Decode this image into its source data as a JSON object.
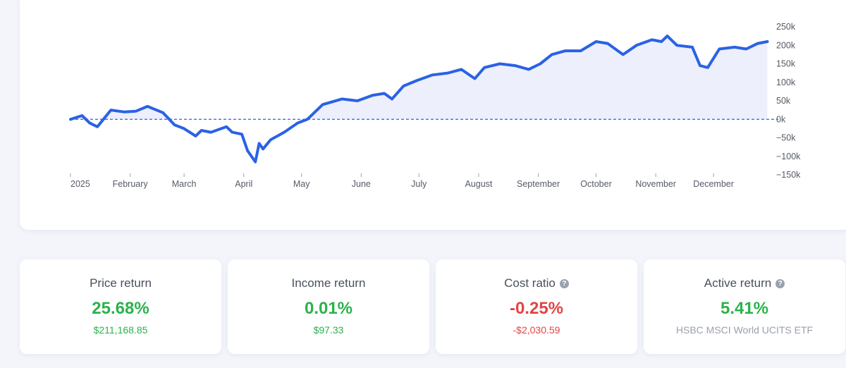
{
  "chart_data": {
    "type": "area",
    "x_ticks": [
      "2025",
      "February",
      "March",
      "April",
      "May",
      "June",
      "July",
      "August",
      "September",
      "October",
      "November",
      "December"
    ],
    "y_ticks": [
      "250k",
      "200k",
      "150k",
      "100k",
      "50k",
      "0k",
      "−50k",
      "−100k",
      "−150k"
    ],
    "ylim": [
      -150000,
      250000
    ],
    "grid": false,
    "baseline": 0,
    "colors": {
      "line": "#2a62e6",
      "fill": "#edf0fc",
      "baseline": "#2a62e6"
    },
    "series": [
      {
        "x": [
          "2025-01-01",
          "2025-01-07",
          "2025-01-11",
          "2025-01-15",
          "2025-01-22",
          "2025-01-29",
          "2025-02-04",
          "2025-02-10",
          "2025-02-18",
          "2025-02-24",
          "2025-03-01",
          "2025-03-07",
          "2025-03-10",
          "2025-03-15",
          "2025-03-23",
          "2025-03-26",
          "2025-03-31",
          "2025-04-03",
          "2025-04-07",
          "2025-04-09",
          "2025-04-11",
          "2025-04-15",
          "2025-04-22",
          "2025-04-29",
          "2025-05-04",
          "2025-05-12",
          "2025-05-22",
          "2025-05-30",
          "2025-06-07",
          "2025-06-13",
          "2025-06-17",
          "2025-06-23",
          "2025-06-30",
          "2025-07-08",
          "2025-07-16",
          "2025-07-23",
          "2025-07-30",
          "2025-08-04",
          "2025-08-12",
          "2025-08-20",
          "2025-08-27",
          "2025-09-02",
          "2025-09-08",
          "2025-09-15",
          "2025-09-23",
          "2025-10-01",
          "2025-10-07",
          "2025-10-15",
          "2025-10-22",
          "2025-10-30",
          "2025-11-04",
          "2025-11-07",
          "2025-11-12",
          "2025-11-20",
          "2025-11-24",
          "2025-11-28",
          "2025-12-04",
          "2025-12-12",
          "2025-12-18",
          "2025-12-24",
          "2025-12-29"
        ],
        "y": [
          0,
          10000,
          -10000,
          -20000,
          25000,
          20000,
          22000,
          35000,
          18000,
          -15000,
          -25000,
          -45000,
          -30000,
          -35000,
          -20000,
          -35000,
          -40000,
          -85000,
          -115000,
          -65000,
          -80000,
          -55000,
          -35000,
          -10000,
          0,
          40000,
          55000,
          50000,
          65000,
          70000,
          55000,
          90000,
          105000,
          120000,
          125000,
          135000,
          110000,
          140000,
          150000,
          145000,
          135000,
          150000,
          175000,
          185000,
          185000,
          210000,
          205000,
          175000,
          200000,
          215000,
          210000,
          225000,
          200000,
          195000,
          145000,
          140000,
          190000,
          195000,
          190000,
          205000,
          210000
        ]
      }
    ]
  },
  "stats": [
    {
      "title": "Price return",
      "help": false,
      "value": "25.68%",
      "sub": "$211,168.85",
      "value_color": "green",
      "sub_color": "green"
    },
    {
      "title": "Income return",
      "help": false,
      "value": "0.01%",
      "sub": "$97.33",
      "value_color": "green",
      "sub_color": "green"
    },
    {
      "title": "Cost ratio",
      "help": true,
      "value": "-0.25%",
      "sub": "-$2,030.59",
      "value_color": "red",
      "sub_color": "red"
    },
    {
      "title": "Active return",
      "help": true,
      "value": "5.41%",
      "sub": "HSBC MSCI World UCITS ETF",
      "value_color": "green",
      "sub_color": "muted"
    }
  ],
  "help_icon": "question-mark-icon"
}
